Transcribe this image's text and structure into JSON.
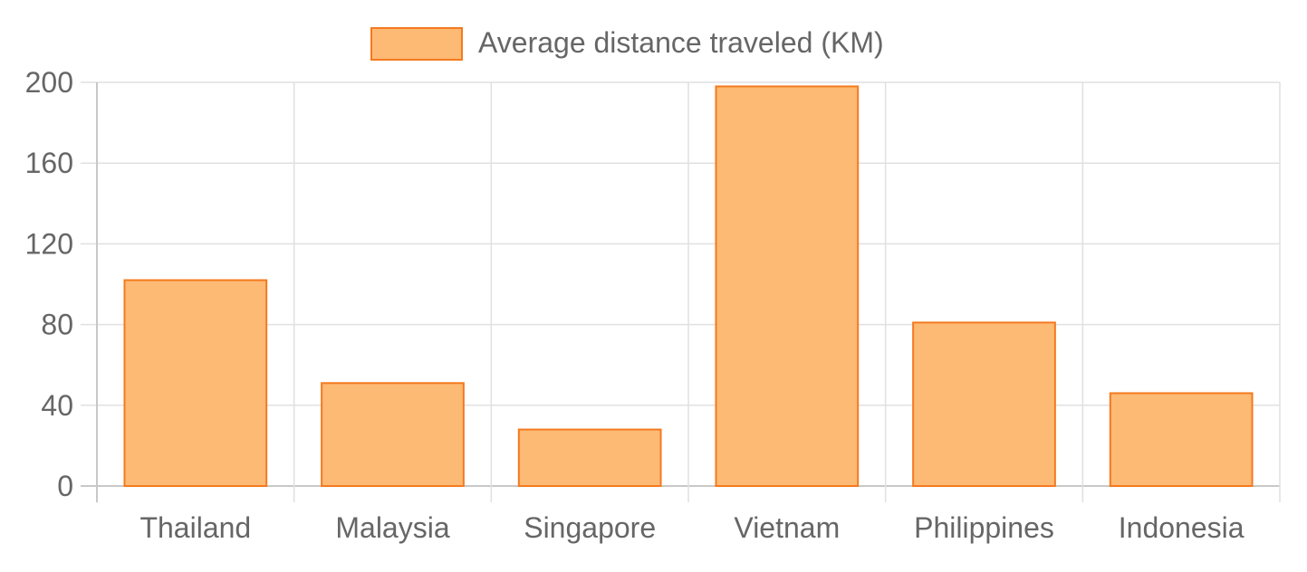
{
  "chart_data": {
    "type": "bar",
    "categories": [
      "Thailand",
      "Malaysia",
      "Singapore",
      "Vietnam",
      "Philippines",
      "Indonesia"
    ],
    "series": [
      {
        "name": "Average distance traveled (KM)",
        "values": [
          102,
          51,
          28,
          198,
          81,
          46
        ]
      }
    ],
    "title": "",
    "xlabel": "",
    "ylabel": "",
    "ylim": [
      0,
      200
    ],
    "yticks": [
      "0",
      "40",
      "80",
      "120",
      "160",
      "200"
    ],
    "grid": true,
    "legend_position": "top-center",
    "colors": {
      "bar_fill": "#fdba74",
      "bar_border": "#f47a1f",
      "grid": "#e0e0e0",
      "axis": "#c8c8c8",
      "text": "#666666"
    }
  }
}
